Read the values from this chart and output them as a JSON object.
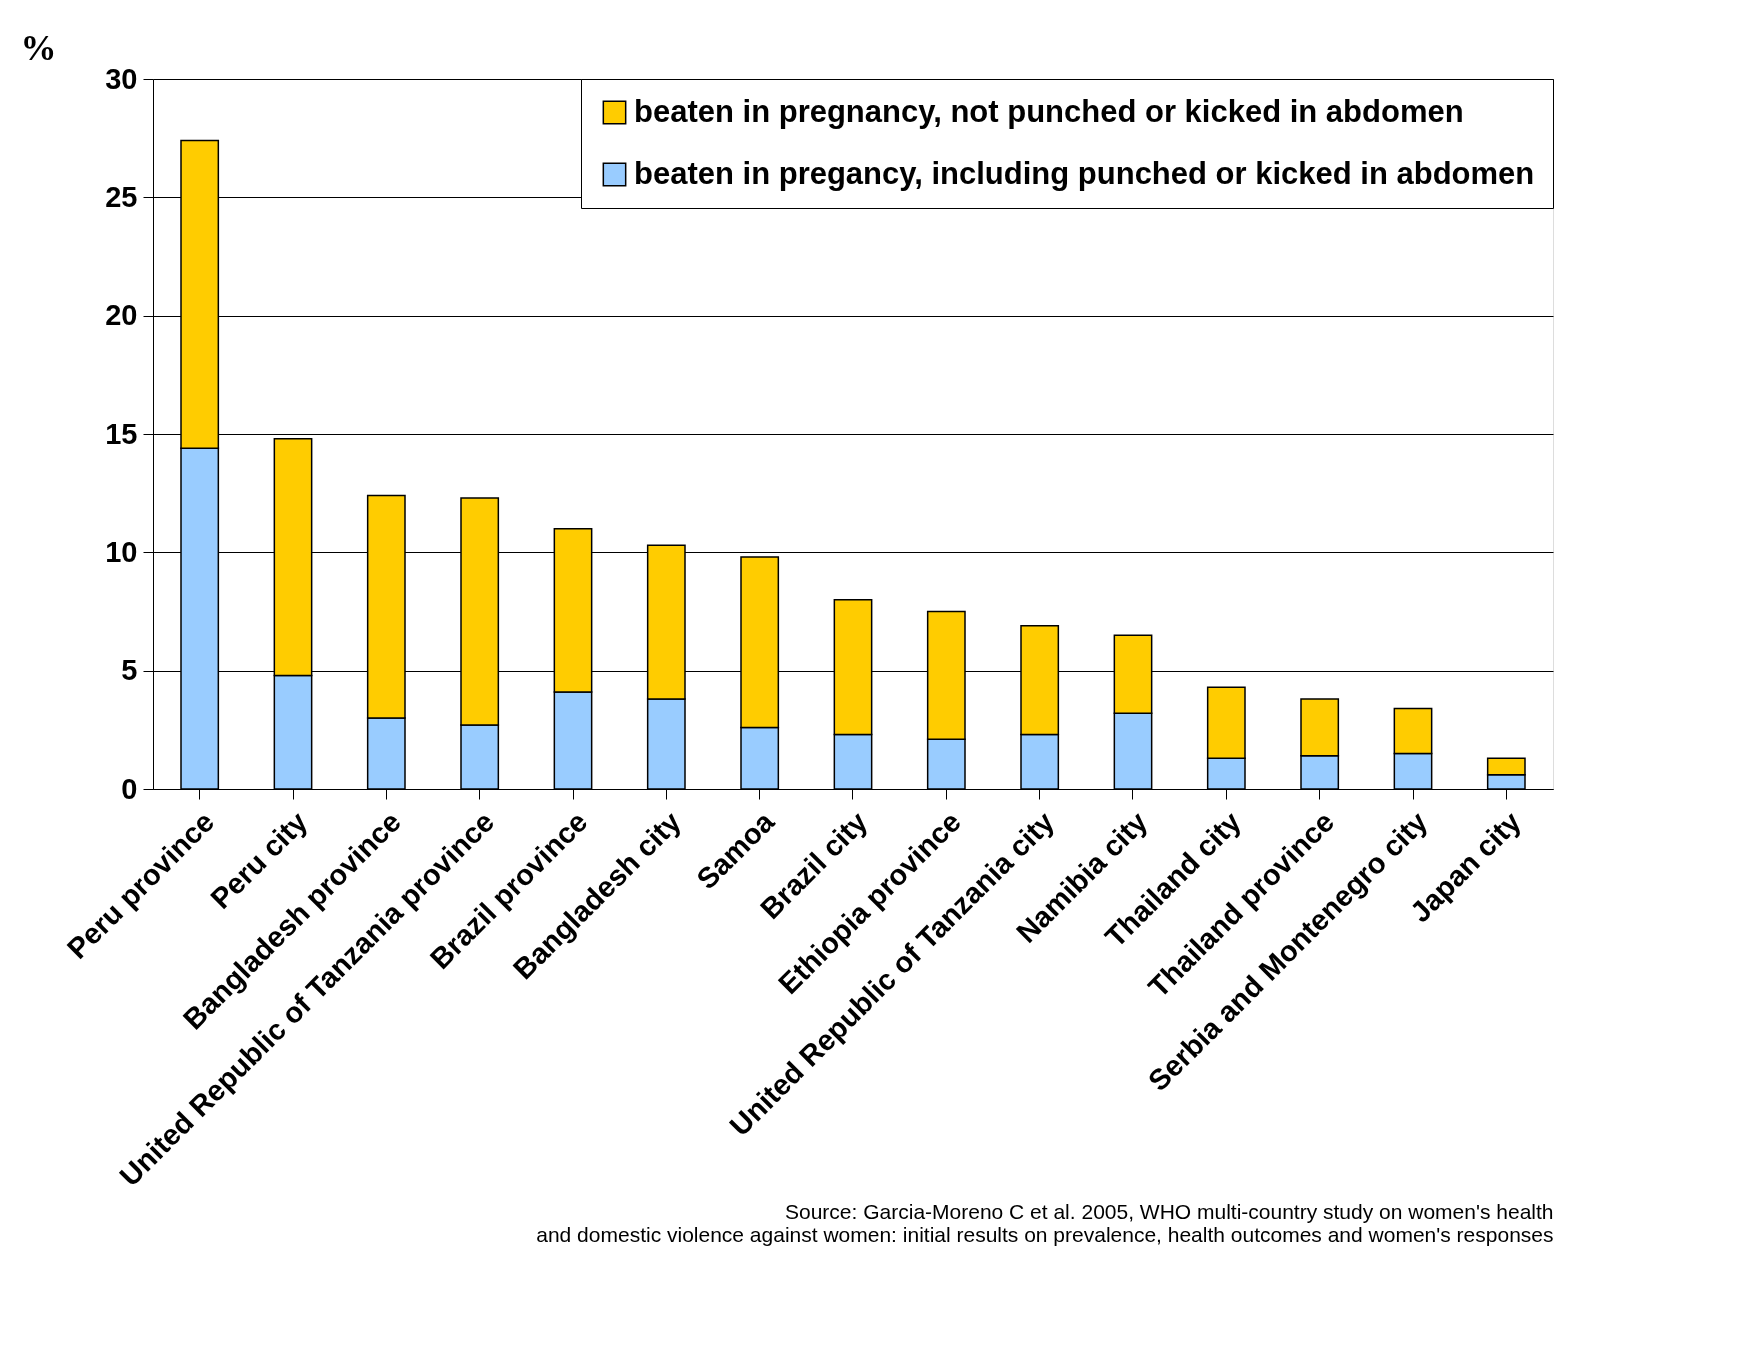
{
  "chart_data": {
    "type": "bar",
    "stacked": true,
    "ylabel": "%",
    "ylim": [
      0,
      30
    ],
    "yticks": [
      0,
      5,
      10,
      15,
      20,
      25,
      30
    ],
    "grid": "y",
    "legend": "top right",
    "categories": [
      "Peru province",
      "Peru city",
      "Bangladesh province",
      "United Republic of Tanzania province",
      "Brazil province",
      "Bangladesh city",
      "Samoa",
      "Brazil city",
      "Ethiopia province",
      "United Republic of Tanzania city",
      "Namibia city",
      "Thailand city",
      "Thailand province",
      "Serbia and Montenegro city",
      "Japan city"
    ],
    "series": [
      {
        "name": "beaten in pregancy, including punched or kicked in abdomen",
        "color": "#99ccff",
        "values": [
          14.4,
          4.8,
          3.0,
          2.7,
          4.1,
          3.8,
          2.6,
          2.3,
          2.1,
          2.3,
          3.2,
          1.3,
          1.4,
          1.5,
          0.6
        ]
      },
      {
        "name": "beaten in pregnancy, not punched or kicked in abdomen",
        "color": "#ffcc00",
        "values": [
          13.0,
          10.0,
          9.4,
          9.6,
          6.9,
          6.5,
          7.2,
          5.7,
          5.4,
          4.6,
          3.3,
          3.0,
          2.4,
          1.9,
          0.7
        ]
      }
    ],
    "annotations": [
      "Source: Garcia-Moreno C et al. 2005, WHO multi-country study on women's health",
      "and domestic violence against women: initial results on prevalence, health outcomes and women's responses"
    ]
  }
}
